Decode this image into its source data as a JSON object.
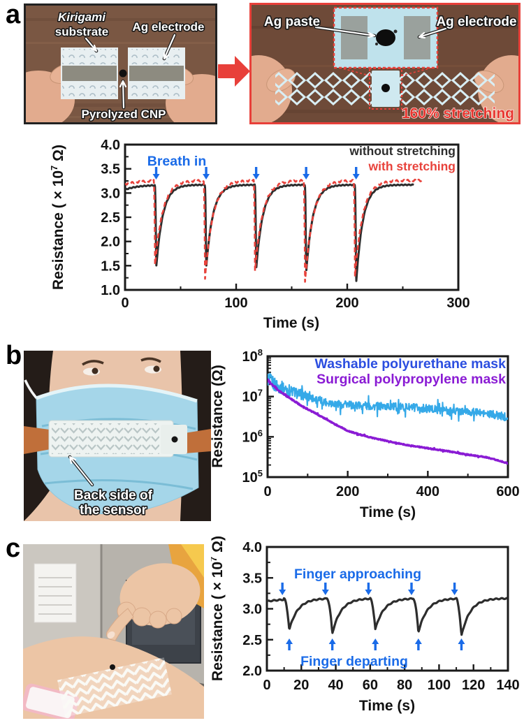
{
  "colors": {
    "annotation_blue": "#1a6be8",
    "red_accent": "#e8423b",
    "dark_trace": "#2d2d2d",
    "legend_blue": "#2b4ee0",
    "trace_light_blue": "#35a9e8",
    "purple": "#8a1bd4",
    "photo_border_red": "#e8403a"
  },
  "panels": {
    "a": {
      "label": "a",
      "left_photo": {
        "label_kirigami_line1": "Kirigami",
        "label_kirigami_line2": "substrate",
        "label_electrode": "Ag electrode",
        "label_cnp": "Pyrolyzed CNP"
      },
      "right_photo": {
        "label_paste": "Ag paste",
        "label_electrode": "Ag electrode",
        "label_stretch": "160% stretching"
      }
    },
    "b": {
      "label": "b",
      "photo_caption_line1": "Back side of",
      "photo_caption_line2": "the sensor"
    },
    "c": {
      "label": "c"
    }
  },
  "chart_data": [
    {
      "id": "chart-a",
      "type": "line",
      "xlabel": "Time (s)",
      "ylabel_prefix": "Resistance ( × 10",
      "ylabel_exp": "7",
      "ylabel_suffix": " Ω)",
      "xlim": [
        0,
        300
      ],
      "ylim": [
        1.0,
        4.0
      ],
      "xticks": [
        0,
        100,
        200,
        300
      ],
      "xminorticks": [
        50,
        150,
        250
      ],
      "yticks": [
        1.0,
        1.5,
        2.0,
        2.5,
        3.0,
        3.5,
        4.0
      ],
      "yminorstep": 0.25,
      "legend_position": "top-right",
      "annotation": {
        "text": "Breath in",
        "times": [
          28,
          73,
          118,
          163,
          208
        ]
      },
      "legend": [
        {
          "label": "without stretching",
          "color": "#2d2d2d",
          "dashed": false
        },
        {
          "label": "with stretching",
          "color": "#e8423b",
          "dashed": true
        }
      ],
      "series": [
        {
          "name": "without stretching",
          "color": "#2d2d2d",
          "width": 3,
          "dashed": false,
          "baseline": 3.17,
          "start": 3.07,
          "fall": 1.2,
          "tau": 6,
          "t_end": 260,
          "wiggle": 0.008,
          "dips": [
            {
              "t": 28,
              "min": 1.45
            },
            {
              "t": 73,
              "min": 1.44
            },
            {
              "t": 118,
              "min": 1.42
            },
            {
              "t": 163,
              "min": 1.34
            },
            {
              "t": 208,
              "min": 1.12
            }
          ]
        },
        {
          "name": "with stretching",
          "color": "#e8423b",
          "width": 2.6,
          "dashed": true,
          "baseline": 3.26,
          "start": 3.18,
          "fall": 1.2,
          "tau": 7,
          "t_end": 268,
          "wiggle": 0.018,
          "dips": [
            {
              "t": 27,
              "min": 1.52
            },
            {
              "t": 72,
              "min": 1.22
            },
            {
              "t": 117,
              "min": 1.41
            },
            {
              "t": 162,
              "min": 1.15
            },
            {
              "t": 207,
              "min": 1.28
            }
          ]
        }
      ]
    },
    {
      "id": "chart-b",
      "type": "line",
      "yscale": "log",
      "xlabel": "Time (s)",
      "ylabel": "Resistance (Ω)",
      "xlim": [
        0,
        600
      ],
      "ylim_exp": [
        5,
        8
      ],
      "xticks": [
        0,
        200,
        400,
        600
      ],
      "xminorticks": [
        100,
        300,
        500
      ],
      "ytick_exps": [
        8,
        7,
        6,
        5
      ],
      "legend_position": "top-right",
      "legend": [
        {
          "label": "Washable polyurethane mask",
          "color": "#2b4ee0"
        },
        {
          "label": "Surgical polypropylene mask",
          "color": "#8a1bd4"
        }
      ],
      "series": [
        {
          "name": "Washable polyurethane mask",
          "color": "#35a9e8",
          "width": 2.1,
          "noise": 0.1,
          "anchors": [
            [
              0,
              28000000
            ],
            [
              20,
              19000000
            ],
            [
              40,
              16000000
            ],
            [
              60,
              13500000
            ],
            [
              80,
              11500000
            ],
            [
              100,
              10000000
            ],
            [
              120,
              8500000
            ],
            [
              150,
              7200000
            ],
            [
              180,
              6500000
            ],
            [
              210,
              6200000
            ],
            [
              250,
              5800000
            ],
            [
              300,
              5600000
            ],
            [
              350,
              5400000
            ],
            [
              400,
              5000000
            ],
            [
              440,
              4600000
            ],
            [
              480,
              4300000
            ],
            [
              520,
              4000000
            ],
            [
              560,
              3600000
            ],
            [
              600,
              3100000
            ]
          ]
        },
        {
          "name": "Surgical polypropylene mask",
          "color": "#8a1bd4",
          "width": 3.2,
          "noise": 0.012,
          "anchors": [
            [
              0,
              26000000
            ],
            [
              10,
              20000000
            ],
            [
              30,
              13500000
            ],
            [
              60,
              8500000
            ],
            [
              90,
              5500000
            ],
            [
              120,
              3800000
            ],
            [
              150,
              2600000
            ],
            [
              170,
              2000000
            ],
            [
              185,
              1700000
            ],
            [
              200,
              1400000
            ],
            [
              250,
              1000000
            ],
            [
              300,
              780000
            ],
            [
              350,
              620000
            ],
            [
              400,
              520000
            ],
            [
              450,
              440000
            ],
            [
              500,
              360000
            ],
            [
              540,
              320000
            ],
            [
              570,
              270000
            ],
            [
              600,
              220000
            ]
          ]
        }
      ]
    },
    {
      "id": "chart-c",
      "type": "line",
      "xlabel": "Time (s)",
      "ylabel_prefix": "Resistance ( × 10",
      "ylabel_exp": "7",
      "ylabel_suffix": " Ω)",
      "xlim": [
        0,
        140
      ],
      "ylim": [
        2.0,
        4.0
      ],
      "xticks": [
        0,
        20,
        40,
        60,
        80,
        100,
        120,
        140
      ],
      "xminorticks": [
        10,
        30,
        50,
        70,
        90,
        110,
        130
      ],
      "yticks": [
        2.0,
        2.5,
        3.0,
        3.5,
        4.0
      ],
      "yminorstep": 0.25,
      "annotation_top": {
        "text": "Finger approaching",
        "times": [
          9,
          34,
          59,
          84,
          109
        ]
      },
      "annotation_bottom": {
        "text": "Finger departing",
        "times": [
          13,
          38,
          63,
          88,
          113
        ]
      },
      "series": [
        {
          "name": "resistance",
          "color": "#2d2d2d",
          "width": 3.2,
          "dashed": false,
          "baseline": 3.17,
          "start": 3.12,
          "fall": 3.2,
          "tau": 5,
          "t_end": 140,
          "wiggle": 0.008,
          "dips": [
            {
              "t": 13,
              "min": 2.66
            },
            {
              "t": 38,
              "min": 2.6
            },
            {
              "t": 63,
              "min": 2.67
            },
            {
              "t": 88,
              "min": 2.62
            },
            {
              "t": 113,
              "min": 2.56
            }
          ]
        }
      ]
    }
  ]
}
